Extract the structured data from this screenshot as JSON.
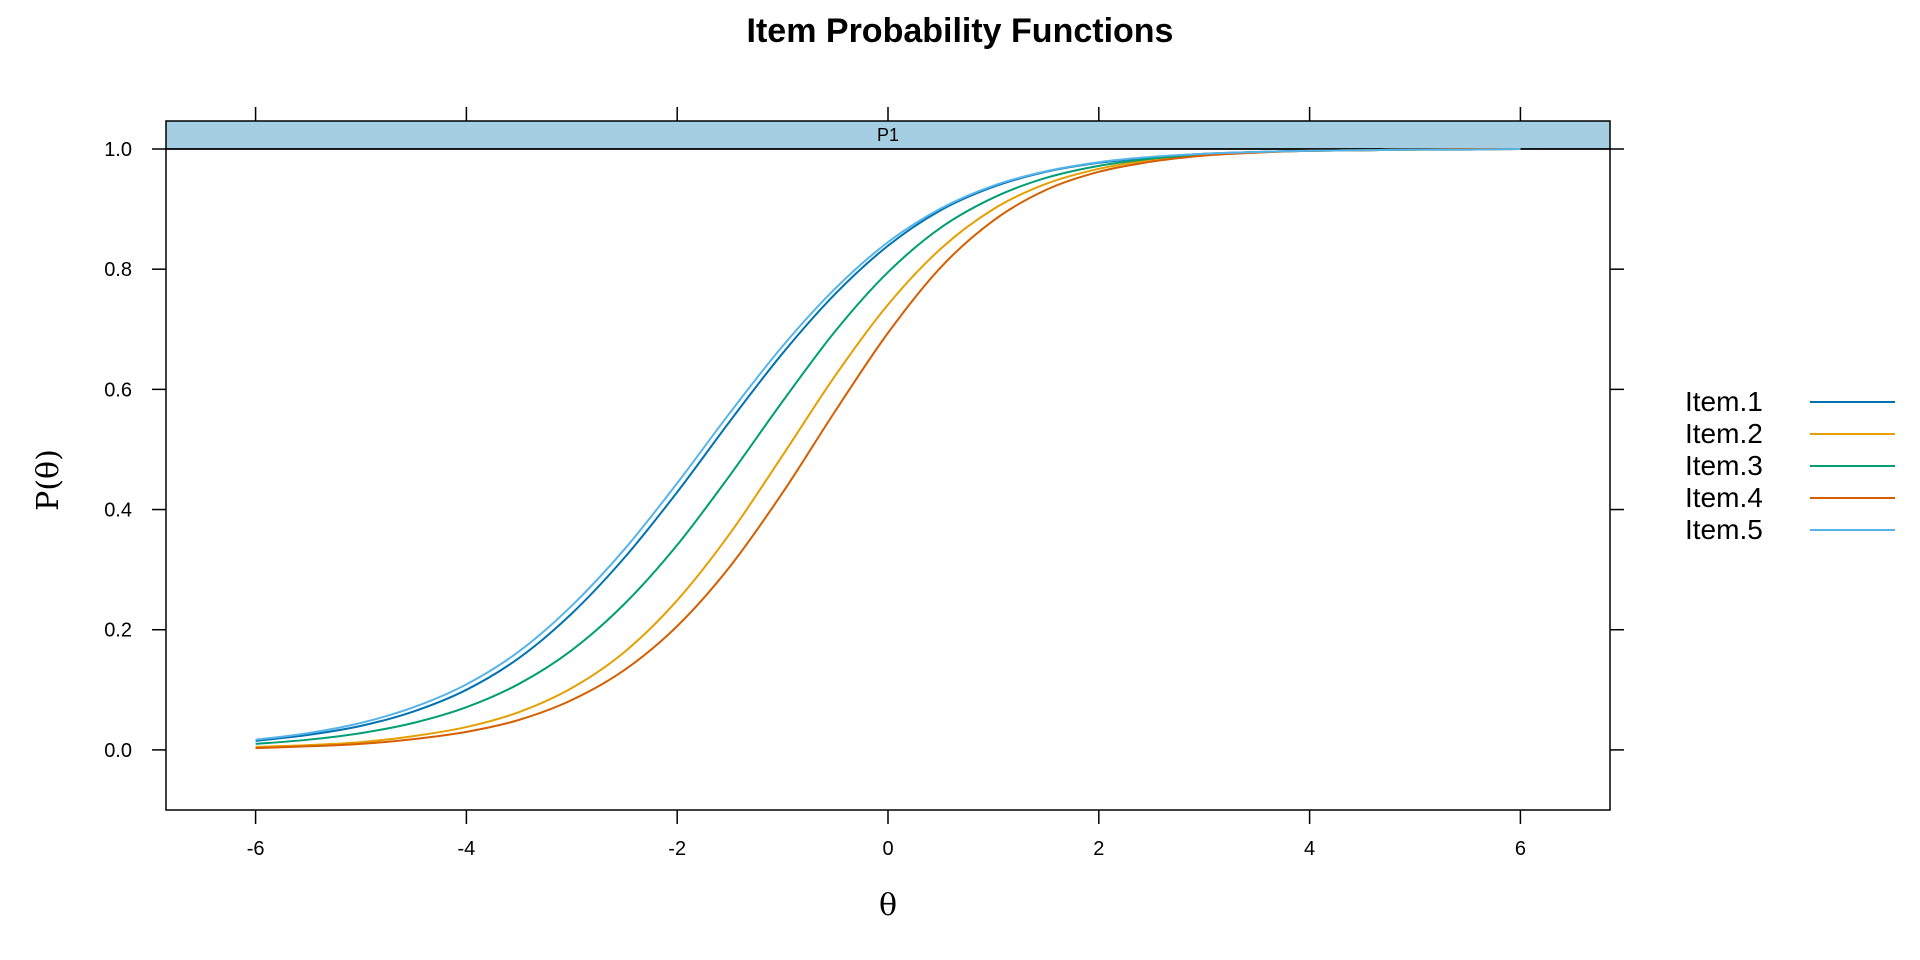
{
  "chart_data": {
    "type": "line",
    "title": "Item Probability Functions",
    "panel": "P1",
    "xlabel": "θ",
    "ylabel": "P(θ)",
    "xlim": [
      -6.85,
      6.85
    ],
    "ylim": [
      -0.1,
      1.0
    ],
    "xticks": [
      -6,
      -4,
      -2,
      0,
      2,
      4,
      6
    ],
    "xtick_labels": [
      "-6",
      "-4",
      "-2",
      "0",
      "2",
      "4",
      "6"
    ],
    "yticks": [
      0.0,
      0.2,
      0.4,
      0.6,
      0.8,
      1.0
    ],
    "ytick_labels": [
      "0.0",
      "0.2",
      "0.4",
      "0.6",
      "0.8",
      "1.0"
    ],
    "legend_position": "right",
    "x": [
      -6,
      -5.5,
      -5,
      -4.5,
      -4,
      -3.5,
      -3,
      -2.5,
      -2,
      -1.5,
      -1,
      -0.5,
      0,
      0.5,
      1,
      1.5,
      2,
      2.5,
      3,
      3.5,
      4,
      4.5,
      5,
      5.5,
      6
    ],
    "series": [
      {
        "name": "Item.1",
        "color": "#0072B2",
        "values": [
          0.015,
          0.025,
          0.04,
          0.064,
          0.1,
          0.153,
          0.227,
          0.32,
          0.429,
          0.547,
          0.66,
          0.759,
          0.839,
          0.898,
          0.937,
          0.962,
          0.977,
          0.986,
          0.992,
          0.995,
          0.997,
          0.998,
          0.999,
          0.999,
          1.0
        ]
      },
      {
        "name": "Item.2",
        "color": "#E69F00",
        "values": [
          0.005,
          0.008,
          0.013,
          0.023,
          0.038,
          0.063,
          0.103,
          0.163,
          0.249,
          0.36,
          0.49,
          0.623,
          0.741,
          0.834,
          0.9,
          0.942,
          0.967,
          0.982,
          0.99,
          0.994,
          0.997,
          0.998,
          0.999,
          0.999,
          1.0
        ]
      },
      {
        "name": "Item.3",
        "color": "#009E73",
        "values": [
          0.01,
          0.017,
          0.028,
          0.045,
          0.071,
          0.11,
          0.166,
          0.243,
          0.341,
          0.457,
          0.58,
          0.697,
          0.795,
          0.869,
          0.919,
          0.952,
          0.972,
          0.984,
          0.991,
          0.995,
          0.997,
          0.998,
          0.999,
          1.0,
          1.0
        ]
      },
      {
        "name": "Item.4",
        "color": "#D55E00",
        "values": [
          0.003,
          0.006,
          0.01,
          0.018,
          0.03,
          0.05,
          0.083,
          0.133,
          0.206,
          0.305,
          0.428,
          0.564,
          0.694,
          0.803,
          0.881,
          0.932,
          0.962,
          0.979,
          0.989,
          0.994,
          0.997,
          0.998,
          0.999,
          1.0,
          1.0
        ]
      },
      {
        "name": "Item.5",
        "color": "#56B4E9",
        "values": [
          0.017,
          0.028,
          0.045,
          0.071,
          0.109,
          0.164,
          0.24,
          0.334,
          0.444,
          0.561,
          0.672,
          0.768,
          0.845,
          0.901,
          0.939,
          0.963,
          0.978,
          0.987,
          0.992,
          0.995,
          0.997,
          0.998,
          0.999,
          0.999,
          1.0
        ]
      }
    ]
  },
  "colors": {
    "strip_fill": "#A6CEE3",
    "frame": "#000000"
  }
}
